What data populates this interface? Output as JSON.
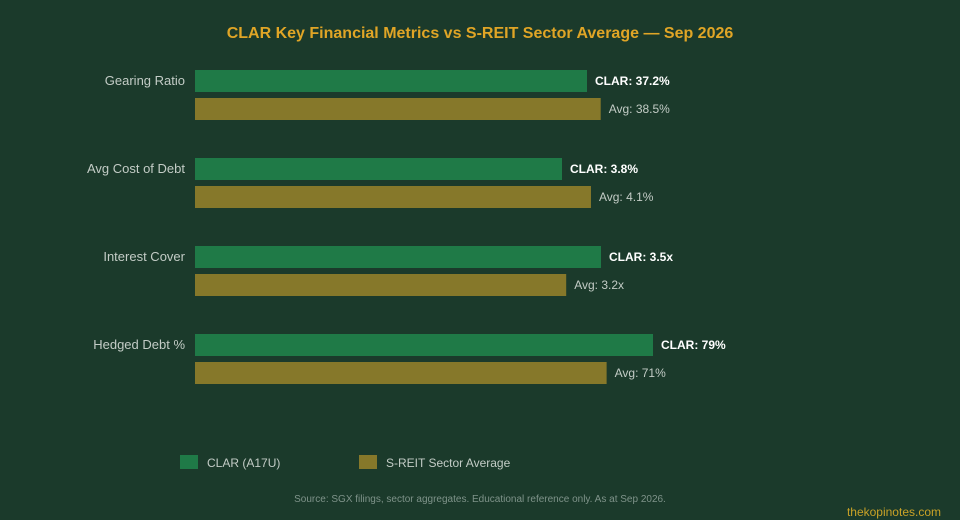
{
  "chart_data": {
    "type": "bar",
    "orientation": "horizontal",
    "title": "CLAR Key Financial Metrics vs S-REIT Sector Average — Sep 2026",
    "categories": [
      "Gearing Ratio",
      "Avg Cost of Debt",
      "Interest Cover",
      "Hedged Debt %"
    ],
    "series": [
      {
        "name": "CLAR (A17U)",
        "color": "#1f7a47",
        "values": [
          37.2,
          3.8,
          3.5,
          79
        ],
        "labels": [
          "CLAR: 37.2%",
          "CLAR: 3.8%",
          "CLAR: 3.5x",
          "CLAR: 79%"
        ]
      },
      {
        "name": "S-REIT Sector Average",
        "color": "#86782a",
        "values": [
          38.5,
          4.1,
          3.2,
          71
        ],
        "labels": [
          "Avg: 38.5%",
          "Avg: 4.1%",
          "Avg: 3.2x",
          "Avg: 71%"
        ]
      }
    ],
    "legend_position": "bottom-left",
    "grid": false
  },
  "colors": {
    "background": "#1b3a2b",
    "title": "#e0a526",
    "category_label": "#c3ccc6",
    "clar_label": "#ffffff",
    "avg_label": "#c3ccc6",
    "source": "#7f938a",
    "watermark": "#c9a227"
  },
  "source_note": "Source: SGX filings, sector aggregates. Educational reference only. As at Sep 2026.",
  "watermark": "thekopinotes.com"
}
